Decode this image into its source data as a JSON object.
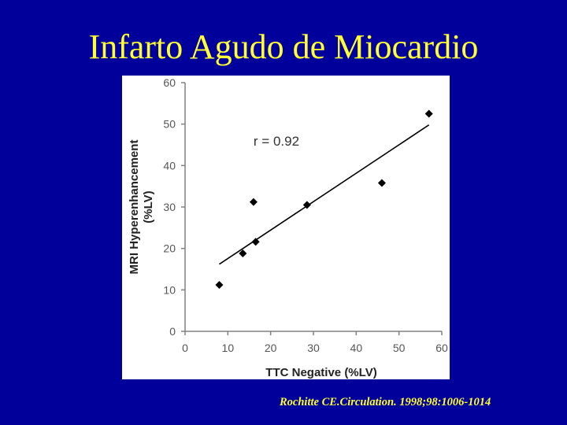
{
  "slide": {
    "title": "Infarto Agudo de Miocardio",
    "citation": "Rochitte CE.Circulation. 1998;98:1006-1014"
  },
  "colors": {
    "background": "#02009a",
    "title_text": "#ffff33",
    "plot_background": "#ffffff",
    "marker": "#000000",
    "axis": "#808080"
  },
  "chart_data": {
    "type": "scatter",
    "xlabel": "TTC Negative (%LV)",
    "ylabel_lines": [
      "MRI Hyperenhancement",
      "(%LV)"
    ],
    "xlim": [
      0,
      60
    ],
    "ylim": [
      0,
      60
    ],
    "xticks": [
      0,
      10,
      20,
      30,
      40,
      50,
      60
    ],
    "yticks": [
      0,
      10,
      20,
      30,
      40,
      50,
      60
    ],
    "grid": false,
    "annotation": "r = 0.92",
    "points": [
      {
        "x": 8,
        "y": 11.2
      },
      {
        "x": 13.5,
        "y": 18.8
      },
      {
        "x": 16,
        "y": 31.2
      },
      {
        "x": 16.5,
        "y": 21.6
      },
      {
        "x": 28.5,
        "y": 30.5
      },
      {
        "x": 46,
        "y": 35.8
      },
      {
        "x": 57,
        "y": 52.5
      }
    ],
    "fit_line": {
      "x": [
        8,
        57
      ],
      "y": [
        16.2,
        49.8
      ]
    }
  }
}
